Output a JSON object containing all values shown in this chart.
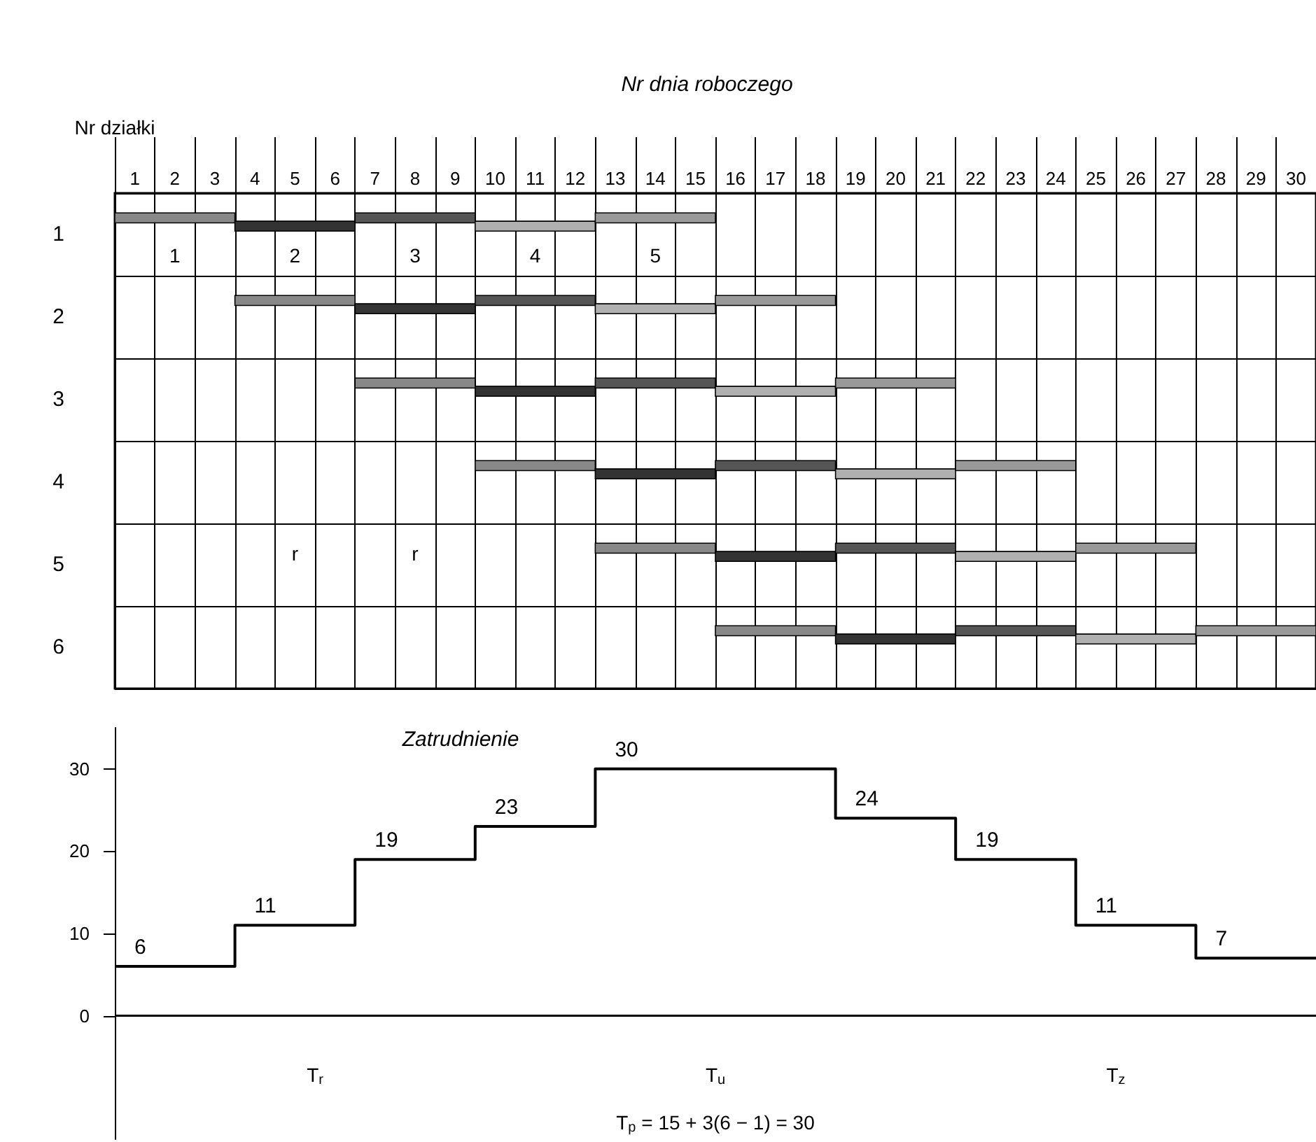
{
  "chart_data": [
    {
      "type": "bar",
      "orientation": "horizontal",
      "title": "Nr dnia roboczego",
      "ylabel": "Nr działki",
      "categories": [
        "1",
        "2",
        "3",
        "4",
        "5",
        "6"
      ],
      "series": [
        {
          "name": "1",
          "color": "#888888",
          "base": [
            0,
            3,
            6,
            9,
            12,
            15
          ],
          "values": [
            3,
            3,
            3,
            3,
            3,
            3
          ]
        },
        {
          "name": "2",
          "color": "#333333",
          "base": [
            3,
            6,
            9,
            12,
            15,
            18
          ],
          "values": [
            3,
            3,
            3,
            3,
            3,
            3
          ]
        },
        {
          "name": "3",
          "color": "#555555",
          "base": [
            6,
            9,
            12,
            15,
            18,
            21
          ],
          "values": [
            3,
            3,
            3,
            3,
            3,
            3
          ]
        },
        {
          "name": "4",
          "color": "#b0b0b0",
          "base": [
            9,
            12,
            15,
            18,
            21,
            24
          ],
          "values": [
            3,
            3,
            3,
            3,
            3,
            3
          ]
        },
        {
          "name": "5",
          "color": "#999999",
          "base": [
            12,
            15,
            18,
            21,
            24,
            27
          ],
          "values": [
            3,
            3,
            3,
            3,
            3,
            3
          ]
        }
      ],
      "xlim": [
        0,
        30
      ],
      "xticks": [
        {
          "value": 0,
          "label": null
        },
        {
          "value": 0.5,
          "label": "1"
        },
        {
          "value": 1,
          "label": null
        },
        {
          "value": 1.5,
          "label": "2"
        },
        {
          "value": 2,
          "label": null
        },
        {
          "value": 2.5,
          "label": "3"
        },
        {
          "value": 3,
          "label": null
        },
        {
          "value": 3.5,
          "label": "4"
        },
        {
          "value": 4,
          "label": null
        },
        {
          "value": 4.5,
          "label": "5"
        },
        {
          "value": 5,
          "label": null
        },
        {
          "value": 5.5,
          "label": "6"
        },
        {
          "value": 6,
          "label": null
        },
        {
          "value": 6.5,
          "label": "7"
        },
        {
          "value": 7,
          "label": null
        },
        {
          "value": 7.5,
          "label": "8"
        },
        {
          "value": 8,
          "label": null
        },
        {
          "value": 8.5,
          "label": "9"
        },
        {
          "value": 9,
          "label": null
        },
        {
          "value": 9.5,
          "label": "10"
        },
        {
          "value": 10,
          "label": null
        },
        {
          "value": 10.5,
          "label": "11"
        },
        {
          "value": 11,
          "label": null
        },
        {
          "value": 11.5,
          "label": "12"
        },
        {
          "value": 12,
          "label": null
        },
        {
          "value": 12.5,
          "label": "13"
        },
        {
          "value": 13,
          "label": null
        },
        {
          "value": 13.5,
          "label": "14"
        },
        {
          "value": 14,
          "label": null
        },
        {
          "value": 14.5,
          "label": "15"
        },
        {
          "value": 15,
          "label": null
        },
        {
          "value": 15.5,
          "label": "16"
        },
        {
          "value": 16,
          "label": null
        },
        {
          "value": 16.5,
          "label": "17"
        },
        {
          "value": 17,
          "label": null
        },
        {
          "value": 17.5,
          "label": "18"
        },
        {
          "value": 18,
          "label": null
        },
        {
          "value": 18.5,
          "label": "19"
        },
        {
          "value": 19,
          "label": null
        },
        {
          "value": 19.5,
          "label": "20"
        },
        {
          "value": 20,
          "label": null
        },
        {
          "value": 20.5,
          "label": "21"
        },
        {
          "value": 21,
          "label": null
        },
        {
          "value": 21.5,
          "label": "22"
        },
        {
          "value": 22,
          "label": null
        },
        {
          "value": 22.5,
          "label": "23"
        },
        {
          "value": 23,
          "label": null
        },
        {
          "value": 23.5,
          "label": "24"
        },
        {
          "value": 24,
          "label": null
        },
        {
          "value": 24.5,
          "label": "25"
        },
        {
          "value": 25,
          "label": null
        },
        {
          "value": 25.5,
          "label": "26"
        },
        {
          "value": 26,
          "label": null
        },
        {
          "value": 26.5,
          "label": "27"
        },
        {
          "value": 27,
          "label": null
        },
        {
          "value": 27.5,
          "label": "28"
        },
        {
          "value": 28,
          "label": null
        },
        {
          "value": 28.5,
          "label": "29"
        },
        {
          "value": 29,
          "label": null
        },
        {
          "value": 29.5,
          "label": "30"
        },
        {
          "value": 30,
          "label": null
        }
      ],
      "grid": true,
      "annotations": [
        "r",
        "r"
      ]
    },
    {
      "type": "step",
      "title": "Zatrudnienie",
      "x": [
        0,
        3,
        6,
        9,
        12,
        18,
        21,
        24,
        27,
        30
      ],
      "values": [
        6,
        11,
        19,
        23,
        30,
        24,
        19,
        11,
        7,
        7
      ],
      "value_labels": [
        "6",
        "11",
        "19",
        "23",
        "30",
        "24",
        "19",
        "11",
        "7",
        null
      ],
      "color": "#000000",
      "xlim": [
        0,
        30
      ],
      "ylim": [
        -15,
        35
      ],
      "yticks": [
        0,
        10,
        20,
        30
      ],
      "tick_labels": "y",
      "marker": "none",
      "annotations": [
        "T$_{r}$",
        "T$_{u}$",
        "T$_{z}$",
        "T$_{p}$ = 15 + 3(6 − 1) = 30"
      ]
    }
  ]
}
